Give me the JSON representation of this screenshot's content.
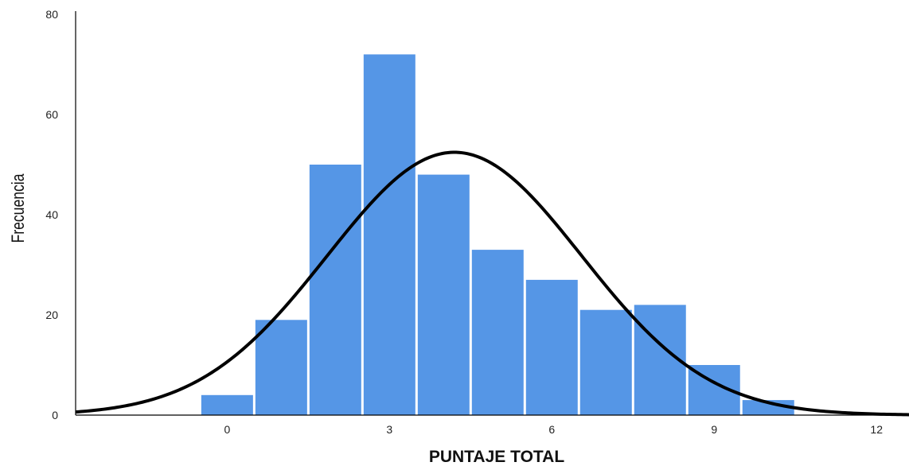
{
  "chart_data": {
    "type": "bar",
    "title": "",
    "xlabel": "PUNTAJE TOTAL",
    "ylabel": "Frecuencia",
    "x": [
      0,
      1,
      2,
      3,
      4,
      5,
      6,
      7,
      8,
      9,
      10
    ],
    "values": [
      4,
      19,
      50,
      72,
      48,
      33,
      27,
      21,
      22,
      10,
      3
    ],
    "xlim": [
      -2.8,
      12.6
    ],
    "ylim": [
      0,
      80
    ],
    "xticks": [
      0,
      3,
      6,
      9,
      12
    ],
    "yticks": [
      0,
      20,
      40,
      60,
      80
    ],
    "grid": false,
    "bar_color": "#5596e6",
    "normal_curve": {
      "mean": 4.2,
      "std": 2.35,
      "n": 309,
      "bin_width": 1,
      "color": "#000000"
    }
  }
}
